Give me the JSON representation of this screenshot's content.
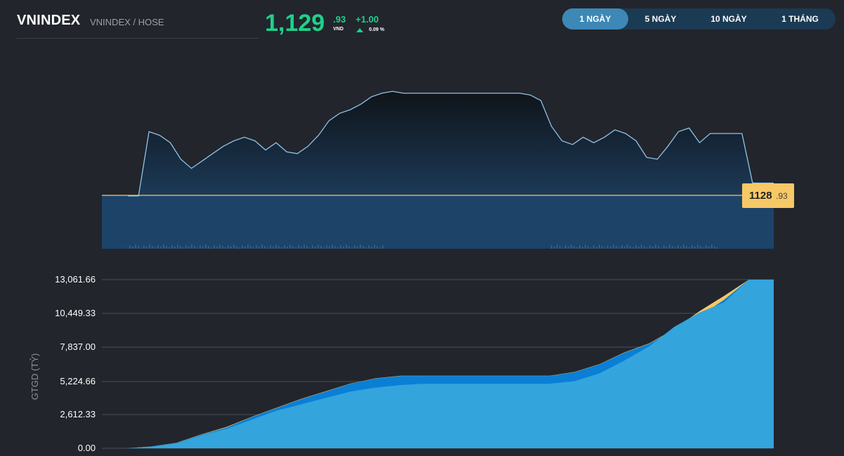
{
  "header": {
    "symbol": "VNINDEX",
    "exchange": "VNINDEX / HOSE",
    "price_int": "1,129",
    "price_dec": ".93",
    "price_unit": "VND",
    "change": "+1.00",
    "change_pct": "0.09 %",
    "change_icon": "triangle-up-icon"
  },
  "range_tabs": [
    {
      "label": "1 NGÀY",
      "active": true
    },
    {
      "label": "5 NGÀY",
      "active": false
    },
    {
      "label": "10 NGÀY",
      "active": false
    },
    {
      "label": "1 THÁNG",
      "active": false
    }
  ],
  "price_marker": {
    "int": "1128",
    "dec": ".93"
  },
  "colors": {
    "up": "#1fd08a",
    "line": "#8fc3e6",
    "reference": "#f7c866",
    "value_light": "#34a4dd",
    "value_dark": "#0a7fd6"
  },
  "chart_data": [
    {
      "type": "line",
      "title": "",
      "reference_price": 1128.93,
      "series": [
        {
          "values": [
            1128.9,
            1128.9,
            1132.4,
            1132.2,
            1131.8,
            1130.9,
            1130.4,
            1130.8,
            1131.2,
            1131.6,
            1131.9,
            1132.1,
            1131.9,
            1131.4,
            1131.8,
            1131.3,
            1131.2,
            1131.6,
            1132.2,
            1133.0,
            1133.4,
            1133.6,
            1133.9,
            1134.3,
            1134.5,
            1134.6,
            1134.5,
            1134.5,
            1134.5,
            1134.5,
            1134.5,
            1134.5,
            1134.5,
            1134.5,
            1134.5,
            1134.5,
            1134.5,
            1134.5,
            1134.4,
            1134.1,
            1132.7,
            1131.9,
            1131.7,
            1132.1,
            1131.8,
            1132.1,
            1132.5,
            1132.3,
            1131.9,
            1131.0,
            1130.9,
            1131.6,
            1132.4,
            1132.6,
            1131.8,
            1132.3,
            1132.3,
            1132.3,
            1132.3,
            1129.6,
            1129.6,
            1129.6
          ]
        }
      ],
      "xlabel": "",
      "ylabel": ""
    },
    {
      "type": "area",
      "ylabel": "GTGD (TỶ)",
      "yticks": [
        "13,061.66",
        "10,449.33",
        "7,837.00",
        "5,224.66",
        "2,612.33",
        "0.00"
      ],
      "ylim": [
        0,
        13061.66
      ],
      "series": [
        {
          "values": [
            0,
            0,
            130,
            400,
            1000,
            1500,
            2200,
            2900,
            3400,
            3900,
            4400,
            4700,
            4900,
            5000,
            5000,
            5000,
            5000,
            5000,
            5000,
            5200,
            5800,
            6800,
            7900,
            9400,
            10500,
            11300,
            13061.66,
            13061.66
          ]
        },
        {
          "values": [
            0,
            0,
            140,
            420,
            1050,
            1600,
            2400,
            3100,
            3800,
            4400,
            5000,
            5400,
            5600,
            5600,
            5600,
            5600,
            5600,
            5600,
            5600,
            5900,
            6500,
            7400,
            8100,
            9200,
            10200,
            11500,
            13061.66,
            13061.66
          ]
        },
        {
          "values": [
            0,
            0,
            140,
            430,
            1070,
            1650,
            2420,
            3130,
            3820,
            4420,
            5020,
            5420,
            5620,
            5620,
            5620,
            5620,
            5620,
            5620,
            5620,
            5920,
            6520,
            7430,
            8130,
            9230,
            10600,
            11800,
            13061.66,
            13061.66
          ]
        }
      ]
    }
  ]
}
